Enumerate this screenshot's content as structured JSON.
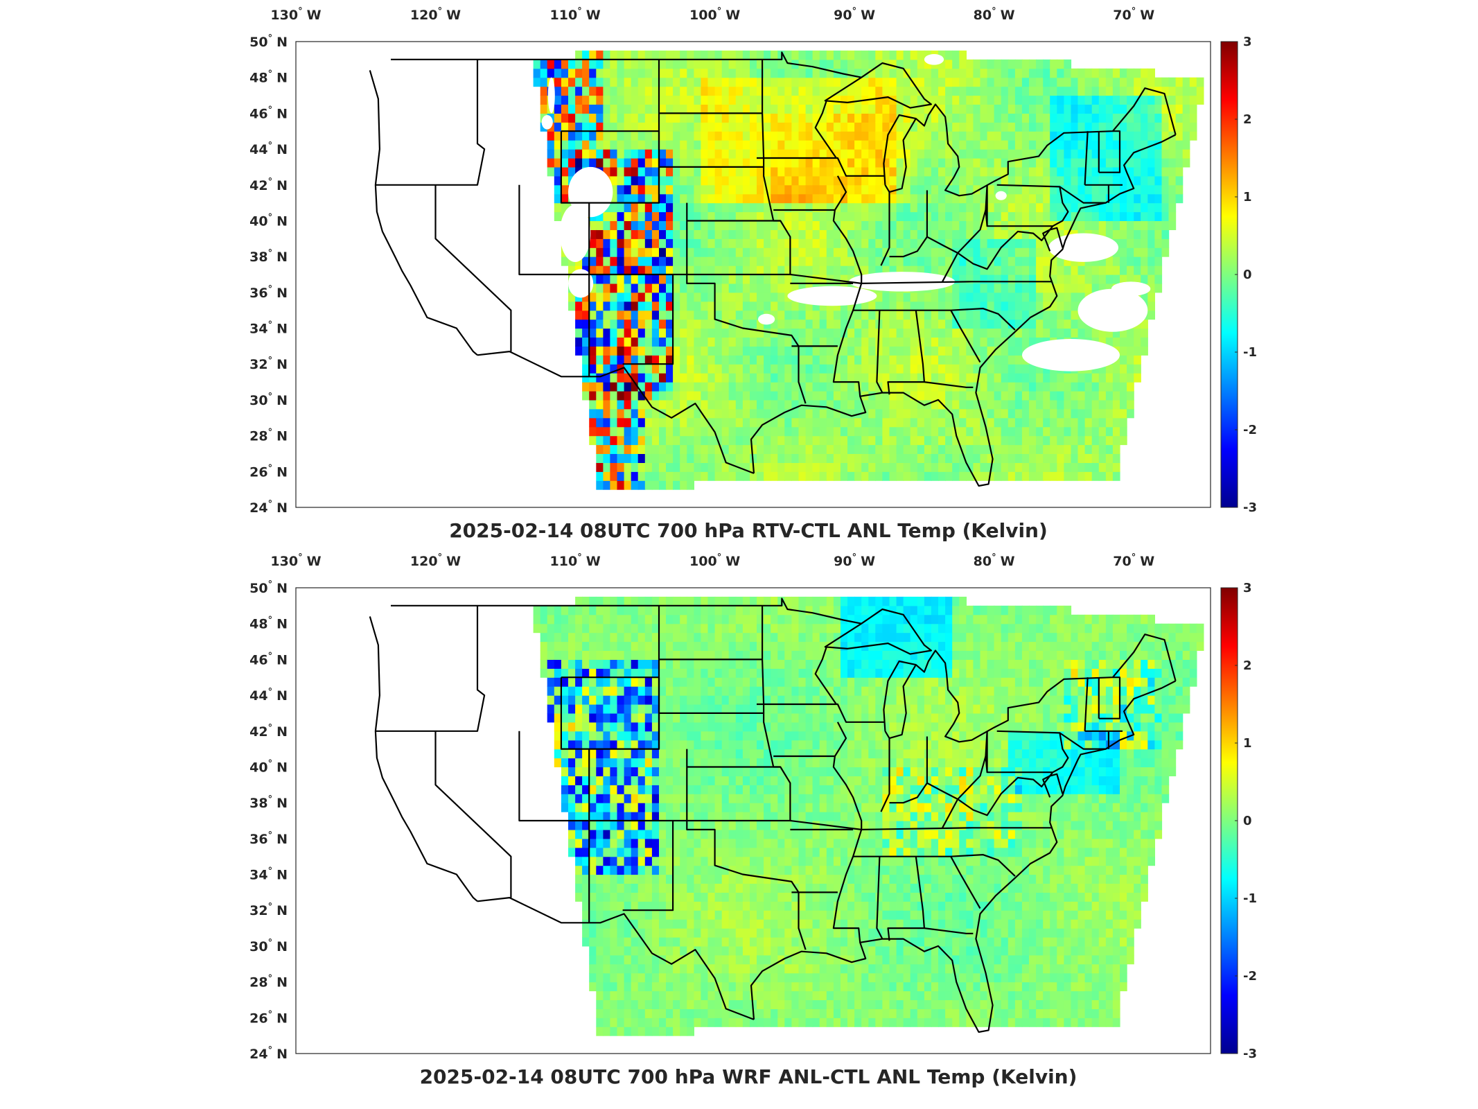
{
  "panels": [
    {
      "title": "2025-02-14 08UTC 700 hPa RTV-CTL ANL Temp (Kelvin)",
      "variant": "rtv",
      "colorbar": {
        "min": -3,
        "max": 3,
        "ticks": [
          "3",
          "2",
          "1",
          "0",
          "-1",
          "-2",
          "-3"
        ]
      }
    },
    {
      "title": "2025-02-14 08UTC 700 hPa WRF ANL-CTL ANL Temp (Kelvin)",
      "variant": "wrf",
      "colorbar": {
        "min": -3,
        "max": 3,
        "ticks": [
          "3",
          "2",
          "1",
          "0",
          "-1",
          "-2",
          "-3"
        ]
      }
    }
  ],
  "lon_ticks": [
    {
      "value": -130,
      "label": "130",
      "suffix": "W"
    },
    {
      "value": -120,
      "label": "120",
      "suffix": "W"
    },
    {
      "value": -110,
      "label": "110",
      "suffix": "W"
    },
    {
      "value": -100,
      "label": "100",
      "suffix": "W"
    },
    {
      "value": -90,
      "label": "90",
      "suffix": "W"
    },
    {
      "value": -80,
      "label": "80",
      "suffix": "W"
    },
    {
      "value": -70,
      "label": "70",
      "suffix": "W"
    }
  ],
  "lat_ticks": [
    {
      "value": 50,
      "label": "50",
      "suffix": "N"
    },
    {
      "value": 48,
      "label": "48",
      "suffix": "N"
    },
    {
      "value": 46,
      "label": "46",
      "suffix": "N"
    },
    {
      "value": 44,
      "label": "44",
      "suffix": "N"
    },
    {
      "value": 42,
      "label": "42",
      "suffix": "N"
    },
    {
      "value": 40,
      "label": "40",
      "suffix": "N"
    },
    {
      "value": 38,
      "label": "38",
      "suffix": "N"
    },
    {
      "value": 36,
      "label": "36",
      "suffix": "N"
    },
    {
      "value": 34,
      "label": "34",
      "suffix": "N"
    },
    {
      "value": 32,
      "label": "32",
      "suffix": "N"
    },
    {
      "value": 30,
      "label": "30",
      "suffix": "N"
    },
    {
      "value": 28,
      "label": "28",
      "suffix": "N"
    },
    {
      "value": 26,
      "label": "26",
      "suffix": "N"
    },
    {
      "value": 24,
      "label": "24",
      "suffix": "N"
    }
  ],
  "extent": {
    "lon_min": -130,
    "lon_max": -64.5,
    "lat_min": 24,
    "lat_max": 50
  },
  "colormap": "jet"
}
